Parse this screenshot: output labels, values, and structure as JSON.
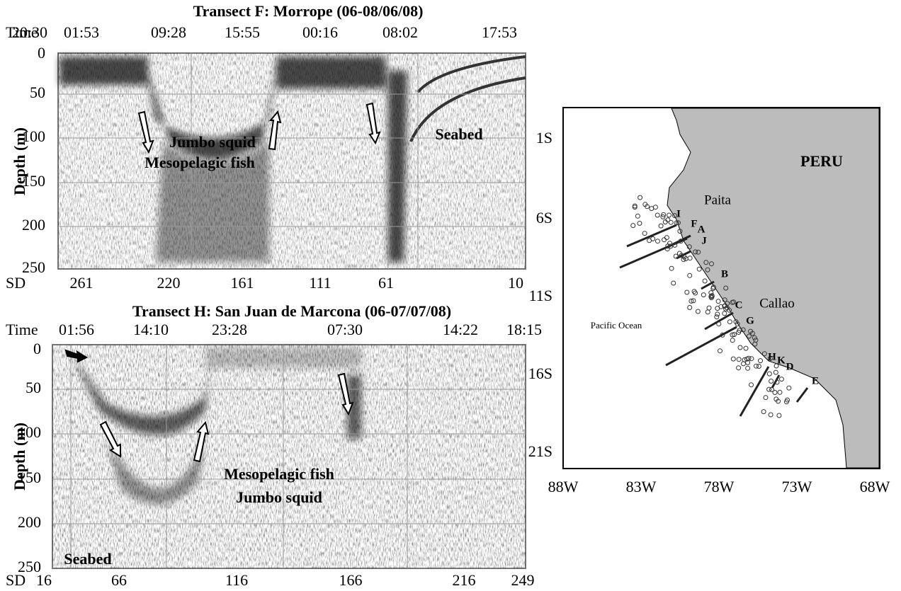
{
  "top": {
    "title": "Transect F:  Morrope (06-08/06/08)",
    "time_label": "Time",
    "times": [
      "20:30",
      "01:53",
      "09:28",
      "15:55",
      "00:16",
      "08:02",
      "17:53"
    ],
    "y_label": "Depth (m)",
    "depths": [
      "0",
      "50",
      "100",
      "150",
      "200",
      "250"
    ],
    "sd_label": "SD",
    "sd": [
      "261",
      "220",
      "161",
      "111",
      "61",
      "10"
    ],
    "annotations": [
      "Jumbo squid",
      "Mesopelagic fish",
      "Seabed"
    ]
  },
  "bottom": {
    "title": "Transect  H: San Juan de Marcona (06-07/07/08)",
    "time_label": "Time",
    "times": [
      "01:56",
      "14:10",
      "23:28",
      "07:30",
      "14:22",
      "18:15"
    ],
    "y_label": "Depth (m)",
    "depths": [
      "0",
      "50",
      "100",
      "150",
      "200",
      "250"
    ],
    "sd_label": "SD",
    "sd": [
      "16",
      "66",
      "116",
      "166",
      "216",
      "249"
    ],
    "annotations": [
      "Mesopelagic fish",
      "Jumbo squid",
      "Seabed"
    ]
  },
  "map": {
    "country": "PERU",
    "ocean": "Pacific Ocean",
    "ports": [
      "Paita",
      "Callao"
    ],
    "latitudes": [
      "1S",
      "6S",
      "11S",
      "16S",
      "21S"
    ],
    "longitudes": [
      "88W",
      "83W",
      "78W",
      "73W",
      "68W"
    ],
    "transects": [
      "I",
      "F",
      "A",
      "J",
      "B",
      "C",
      "G",
      "H",
      "K",
      "D",
      "E"
    ]
  }
}
